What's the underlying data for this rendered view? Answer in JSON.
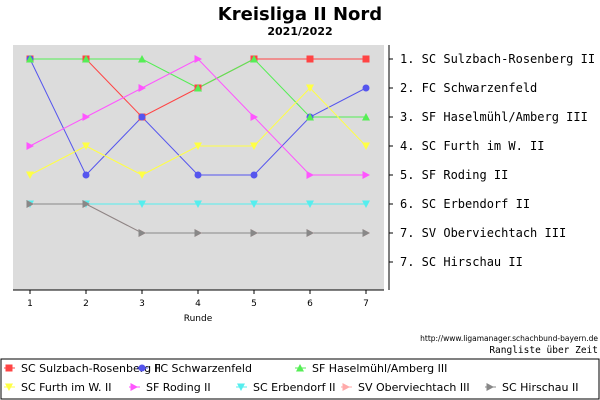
{
  "chart_data": {
    "type": "line",
    "title": "Kreisliga II Nord",
    "subtitle": "2021/2022",
    "xlabel": "Runde",
    "ylabel": "",
    "x": [
      1,
      2,
      3,
      4,
      5,
      6,
      7
    ],
    "ylim": [
      1,
      8
    ],
    "y_inverted": true,
    "grid": false,
    "legend_position": "bottom",
    "rank_labels": [
      "1. SC Sulzbach-Rosenberg II",
      "2. FC Schwarzenfeld",
      "3. SF Haselmühl/Amberg III",
      "4. SC Furth im W. II",
      "5. SF Roding II",
      "6. SC Erbendorf II",
      "7. SV Oberviechtach III",
      "7. SC Hirschau II"
    ],
    "series": [
      {
        "name": "SC Sulzbach-Rosenberg II",
        "color": "#ff4444",
        "marker": "square",
        "values": [
          1,
          1,
          3,
          2,
          1,
          1,
          1
        ]
      },
      {
        "name": "FC Schwarzenfeld",
        "color": "#5555ee",
        "marker": "circle",
        "values": [
          1,
          5,
          3,
          5,
          5,
          3,
          2
        ]
      },
      {
        "name": "SF Haselmühl/Amberg III",
        "color": "#55ee55",
        "marker": "triangle-up",
        "values": [
          1,
          1,
          1,
          2,
          1,
          3,
          3
        ]
      },
      {
        "name": "SC Furth im W. II",
        "color": "#ffff44",
        "marker": "triangle-down",
        "values": [
          5,
          4,
          5,
          4,
          4,
          2,
          4
        ]
      },
      {
        "name": "SF Roding II",
        "color": "#ff55ff",
        "marker": "triangle-right",
        "values": [
          4,
          3,
          2,
          1,
          3,
          5,
          5
        ]
      },
      {
        "name": "SC Erbendorf II",
        "color": "#55eeee",
        "marker": "triangle-down",
        "values": [
          6,
          6,
          6,
          6,
          6,
          6,
          6
        ]
      },
      {
        "name": "SV Oberviechtach III",
        "color": "#ffaaaa",
        "marker": "triangle-right",
        "values": [
          6,
          6,
          7,
          7,
          7,
          7,
          7
        ]
      },
      {
        "name": "SC Hirschau II",
        "color": "#888888",
        "marker": "triangle-right",
        "values": [
          6,
          6,
          7,
          7,
          7,
          7,
          7
        ]
      }
    ]
  },
  "footer": {
    "url": "http://www.ligamanager.schachbund-bayern.de",
    "caption": "Rangliste über Zeit"
  }
}
